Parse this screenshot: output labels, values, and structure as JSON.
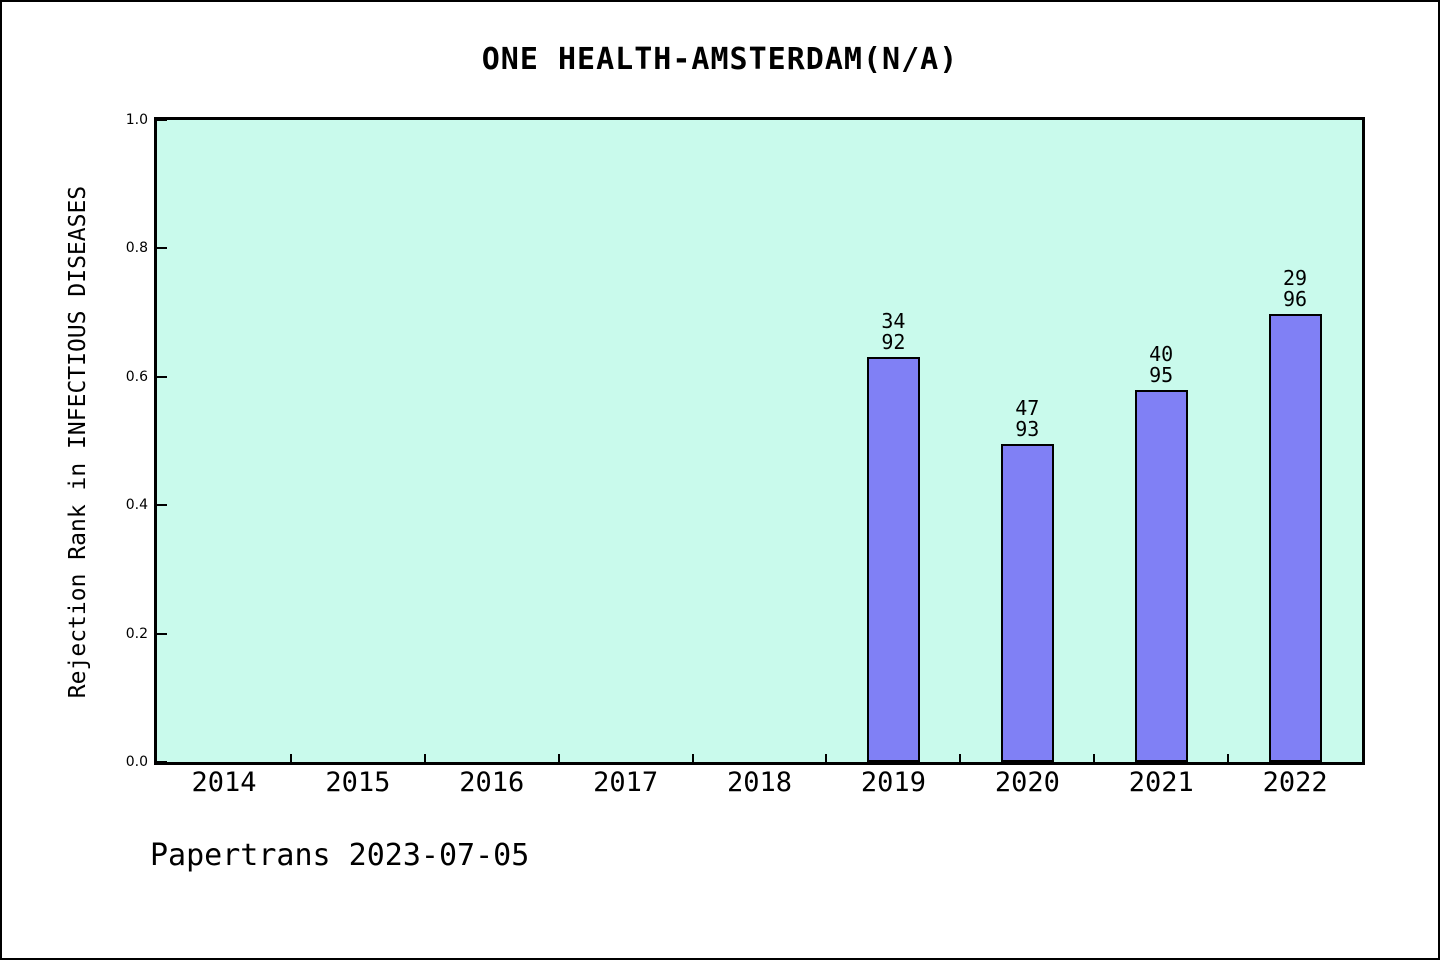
{
  "page": {
    "footer": "Papertrans 2023-07-05"
  },
  "chart_data": {
    "type": "bar",
    "title": "ONE HEALTH-AMSTERDAM(N/A)",
    "ylabel": "Rejection Rank in INFECTIOUS DISEASES",
    "xlabel": "",
    "categories": [
      "2014",
      "2015",
      "2016",
      "2017",
      "2018",
      "2019",
      "2020",
      "2021",
      "2022"
    ],
    "series": [
      {
        "name": "Rejection Rank",
        "values": [
          null,
          null,
          null,
          null,
          null,
          0.6304,
          0.4946,
          0.5789,
          0.6979
        ]
      }
    ],
    "bars": [
      {
        "year": "2019",
        "rank": 34,
        "total": 92,
        "value": 0.6304
      },
      {
        "year": "2020",
        "rank": 47,
        "total": 93,
        "value": 0.4946
      },
      {
        "year": "2021",
        "rank": 40,
        "total": 95,
        "value": 0.5789
      },
      {
        "year": "2022",
        "rank": 29,
        "total": 96,
        "value": 0.6979
      }
    ],
    "yticks": [
      0.0,
      0.2,
      0.4,
      0.6,
      0.8,
      1.0
    ],
    "ylim": [
      0,
      1
    ],
    "grid": false,
    "legend": null,
    "colors": {
      "bar_fill": "#8080f5",
      "bar_border": "#000000",
      "plot_bg": "#c9faec",
      "page_bg": "#ffffff",
      "text": "#000000"
    }
  }
}
